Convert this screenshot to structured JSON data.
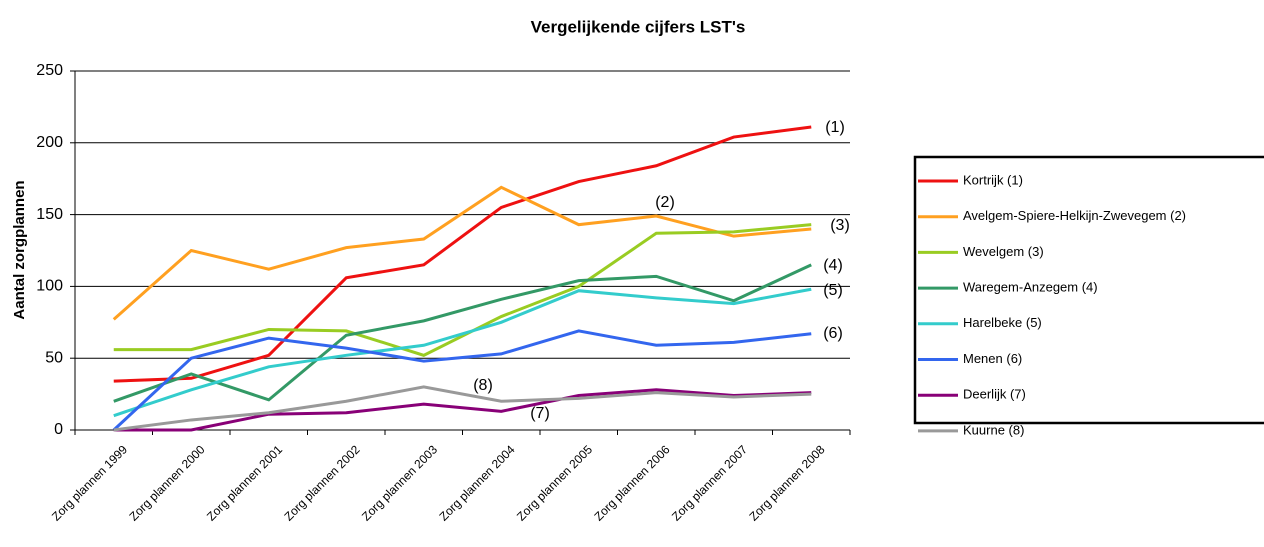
{
  "chart_data": {
    "type": "line",
    "title": "Vergelijkende cijfers LST's",
    "y_label": "Aantal zorgplannen",
    "categories": [
      "Zorg plannen 1999",
      "Zorg plannen 2000",
      "Zorg plannen 2001",
      "Zorg plannen 2002",
      "Zorg plannen 2003",
      "Zorg plannen 2004",
      "Zorg plannen 2005",
      "Zorg plannen 2006",
      "Zorg plannen 2007",
      "Zorg plannen 2008"
    ],
    "series": [
      {
        "name": "Kortrijk (1)",
        "color": "#ee1111",
        "values": [
          34,
          36,
          52,
          106,
          115,
          155,
          173,
          184,
          204,
          211
        ]
      },
      {
        "name": "Avelgem-Spiere-Helkijn-Zwevegem (2)",
        "color": "#ffa020",
        "values": [
          77,
          125,
          112,
          127,
          133,
          169,
          143,
          149,
          135,
          140
        ]
      },
      {
        "name": "Wevelgem (3)",
        "color": "#99cc22",
        "values": [
          56,
          56,
          70,
          69,
          52,
          79,
          100,
          137,
          138,
          143
        ]
      },
      {
        "name": "Waregem-Anzegem (4)",
        "color": "#339966",
        "values": [
          20,
          39,
          21,
          66,
          76,
          91,
          104,
          107,
          90,
          115
        ]
      },
      {
        "name": "Harelbeke (5)",
        "color": "#33cccc",
        "values": [
          10,
          28,
          44,
          52,
          59,
          75,
          97,
          92,
          88,
          98
        ]
      },
      {
        "name": "Menen (6)",
        "color": "#3366ee",
        "values": [
          0,
          50,
          64,
          57,
          48,
          53,
          69,
          59,
          61,
          67
        ]
      },
      {
        "name": "Deerlijk (7)",
        "color": "#880077",
        "values": [
          0,
          0,
          11,
          12,
          18,
          13,
          24,
          28,
          24,
          26
        ]
      },
      {
        "name": "Kuurne (8)",
        "color": "#999999",
        "values": [
          0,
          7,
          12,
          20,
          30,
          20,
          22,
          26,
          23,
          25
        ]
      }
    ],
    "annotations": [
      "(1)",
      "(2)",
      "(3)",
      "(4)",
      "(5)",
      "(6)",
      "(7)",
      "(8)"
    ],
    "ylim": [
      0,
      250
    ],
    "yticks": [
      0,
      50,
      100,
      150,
      200,
      250
    ],
    "grid": true
  }
}
